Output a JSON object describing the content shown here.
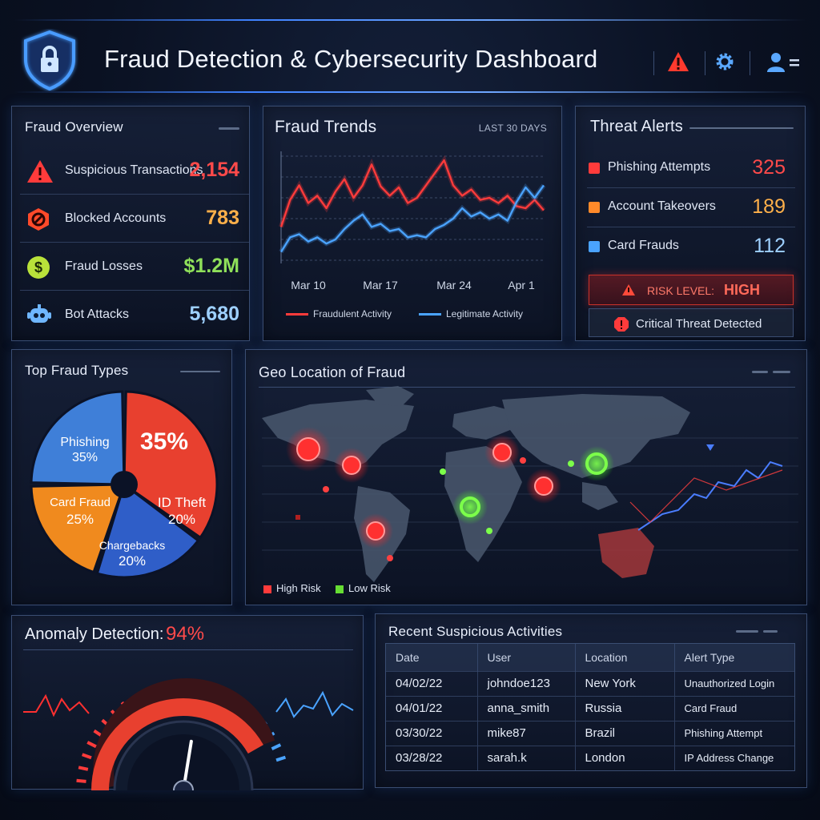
{
  "header": {
    "title": "Fraud Detection & Cybersecurity Dashboard",
    "icons": [
      "shield-lock-icon",
      "alert-icon",
      "gear-icon",
      "user-menu-icon"
    ]
  },
  "fraud_overview": {
    "title": "Fraud Overview",
    "items": [
      {
        "label": "Suspicious Transactions",
        "value": "2,154",
        "icon": "warning-icon",
        "color": "#ff4a4a"
      },
      {
        "label": "Blocked Accounts",
        "value": "783",
        "icon": "block-icon",
        "color": "#ffb04a"
      },
      {
        "label": "Fraud Losses",
        "value": "$1.2M",
        "icon": "dollar-icon",
        "color": "#8fe05a"
      },
      {
        "label": "Bot Attacks",
        "value": "5,680",
        "icon": "bot-icon",
        "color": "#9ed0ff"
      }
    ]
  },
  "fraud_trends": {
    "title": "Fraud Trends",
    "range": "LAST 30 DAYS",
    "legend_fraud": "Fraudulent Activity",
    "legend_legit": "Legitimate Activity"
  },
  "threat_alerts": {
    "title": "Threat Alerts",
    "items": [
      {
        "label": "Phishing Attempts",
        "value": "325",
        "color": "#ff4a4a"
      },
      {
        "label": "Account Takeovers",
        "value": "189",
        "color": "#ffb04a"
      },
      {
        "label": "Card Frauds",
        "value": "112",
        "color": "#9ed0ff"
      }
    ],
    "risk_label": "RISK LEVEL:",
    "risk_value": "HIGH",
    "critical": "Critical Threat Detected"
  },
  "top_fraud_types": {
    "title": "Top Fraud Types",
    "slices": [
      {
        "label": "Phishing",
        "pct": "35%",
        "value": 35,
        "color": "#e8402f"
      },
      {
        "label": "ID Theft",
        "pct": "20%",
        "value": 20,
        "color": "#2f5ec8"
      },
      {
        "label": "Chargebacks",
        "pct": "20%",
        "value": 20,
        "color": "#f08a1e"
      },
      {
        "label": "Card Fraud",
        "pct": "25%",
        "value": 25,
        "color": "#3f7fd8"
      }
    ],
    "headline_pct": "35%"
  },
  "geo": {
    "title": "Geo Location of Fraud",
    "legend_high": "High Risk",
    "legend_low": "Low Risk",
    "high_color": "#ff3b3b",
    "low_color": "#66dd33"
  },
  "anomaly": {
    "label": "Anomaly Detection:",
    "value": "94%",
    "level": 0.94
  },
  "recent": {
    "title": "Recent Suspicious Activities",
    "columns": [
      "Date",
      "User",
      "Location",
      "Alert Type"
    ],
    "rows": [
      [
        "04/02/22",
        "johndoe123",
        "New York",
        "Unauthorized Login"
      ],
      [
        "04/01/22",
        "anna_smith",
        "Russia",
        "Card Fraud"
      ],
      [
        "03/30/22",
        "mike87",
        "Brazil",
        "Phishing Attempt"
      ],
      [
        "03/28/22",
        "sarah.k",
        "London",
        "IP Address Change"
      ]
    ]
  },
  "chart_data": {
    "type": "line",
    "title": "Fraud Trends",
    "x_ticks": [
      "Mar 10",
      "Mar 17",
      "Mar 24",
      "Apr 1"
    ],
    "series": [
      {
        "name": "Fraudulent Activity",
        "color": "#ff3b3b",
        "values": [
          32,
          58,
          72,
          55,
          62,
          50,
          66,
          78,
          60,
          72,
          92,
          71,
          62,
          70,
          55,
          60,
          72,
          84,
          96,
          72,
          62,
          68,
          58,
          60,
          55,
          62,
          52,
          50,
          58,
          48
        ]
      },
      {
        "name": "Legitimate Activity",
        "color": "#4aa3ff",
        "values": [
          8,
          22,
          25,
          18,
          22,
          16,
          20,
          30,
          38,
          44,
          32,
          35,
          28,
          30,
          22,
          24,
          22,
          30,
          34,
          40,
          50,
          42,
          46,
          40,
          44,
          38,
          56,
          70,
          60,
          72
        ]
      }
    ],
    "ylim": [
      0,
      100
    ]
  }
}
